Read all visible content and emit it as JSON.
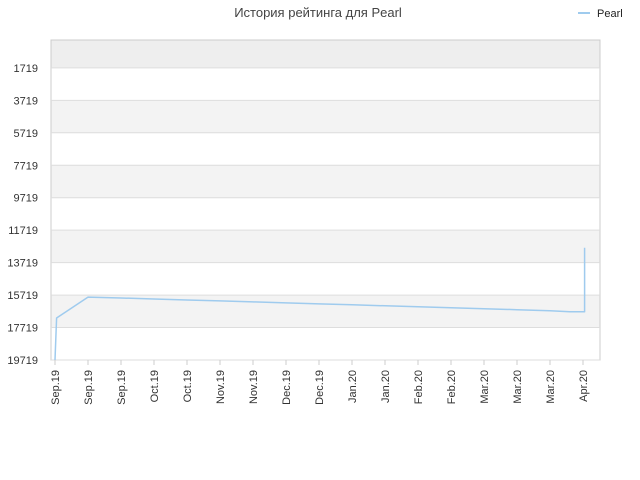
{
  "chart_data": {
    "type": "line",
    "title": "История рейтинга для Pearl",
    "xlabel": "",
    "ylabel": "",
    "y_reversed": true,
    "ylim": [
      19719,
      0
    ],
    "y_ticks": [
      "1719",
      "3719",
      "5719",
      "7719",
      "9719",
      "11719",
      "13719",
      "15719",
      "17719",
      "19719"
    ],
    "x_ticks": [
      "Sep.19",
      "Sep.19",
      "Sep.19",
      "Oct.19",
      "Oct.19",
      "Nov.19",
      "Nov.19",
      "Dec.19",
      "Dec.19",
      "Jan.20",
      "Jan.20",
      "Feb.20",
      "Feb.20",
      "Mar.20",
      "Mar.20",
      "Mar.20",
      "Apr.20"
    ],
    "grid": true,
    "legend": "top-right",
    "series": [
      {
        "name": "Pearl",
        "color": "#9fcbee",
        "x": [
          0.0,
          0.05,
          1.0,
          2.0,
          3.0,
          4.0,
          5.0,
          6.0,
          7.0,
          8.0,
          9.0,
          10.0,
          11.0,
          12.0,
          13.0,
          14.0,
          15.0,
          15.6,
          16.0,
          16.05,
          16.05
        ],
        "y": [
          19719,
          17130,
          15840,
          15900,
          15960,
          16020,
          16080,
          16140,
          16200,
          16260,
          16320,
          16380,
          16440,
          16500,
          16560,
          16620,
          16680,
          16740,
          16740,
          16740,
          12800
        ]
      }
    ]
  },
  "colors": {
    "band_dark": "#eeeeee",
    "band_light": "#f3f3f3",
    "band_white": "#ffffff",
    "grid": "#dddddd",
    "axis": "#cccccc"
  }
}
